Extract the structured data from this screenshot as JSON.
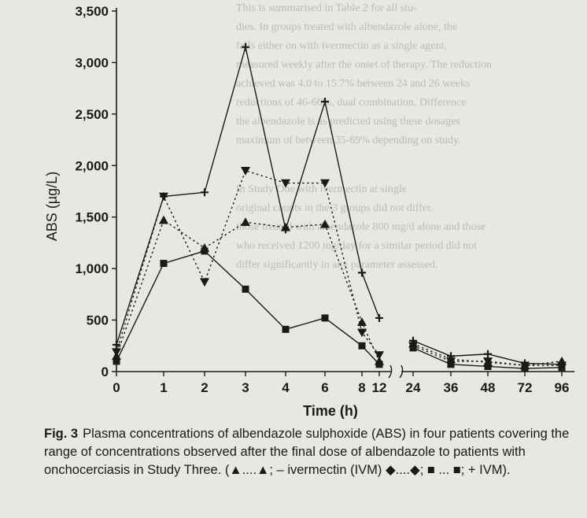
{
  "background_text": [
    "This is summarised in Table 2 for all stu-",
    "dies. In groups treated with albendazole alone, the",
    "falls either on with ivermectin as a single agent,",
    "measured weekly after the onset of therapy. The reduction",
    "achieved was 4.0 to 15.7% between 24 and 26 weeks",
    "reductions of 46-66%, dual combination. Difference",
    "the albendazole is as predicted using these dosages",
    "maximum of between 35-69% depending on study.",
    "In Study One with ivermectin at single",
    "original counts in the 3 groups did not differ.",
    "those treated with albendazole 800 mg/d alone and those",
    "who received 1200 mg/day for a similar period did not",
    "differ significantly in any parameter assessed."
  ],
  "caption": {
    "figure_label": "Fig. 3",
    "text": "Plasma concentrations of albendazole sulphoxide (ABS) in four patients covering the range of concentrations observed after the final dose of albendazole to patients with onchocerciasis in Study Three. (▲....▲; – ivermectin (IVM) ◆....◆; ■ ... ■; + IVM)."
  },
  "chart_data": {
    "type": "line",
    "xlabel": "Time (h)",
    "ylabel": "ABS (µg/L)",
    "ylim": [
      0,
      3500
    ],
    "y_ticks": [
      "0",
      "500",
      "1,000",
      "1,500",
      "2,000",
      "2,500",
      "3,000",
      "3,500"
    ],
    "y_tick_values": [
      0,
      500,
      1000,
      1500,
      2000,
      2500,
      3000,
      3500
    ],
    "x_ticks": [
      "0",
      "1",
      "2",
      "3",
      "4",
      "6",
      "8",
      "12",
      "24",
      "36",
      "48",
      "72",
      "96"
    ],
    "x_axis_break_between": [
      "12",
      "24"
    ],
    "grid": false,
    "legend": "none",
    "series": [
      {
        "marker": "cross",
        "line_style": "solid",
        "values": [
          260,
          1700,
          1740,
          3150,
          1380,
          2620,
          960,
          520,
          300,
          150,
          170,
          80,
          70
        ]
      },
      {
        "marker": "triangle",
        "line_style": "dotted",
        "values": [
          150,
          1470,
          1200,
          1450,
          1400,
          1430,
          480,
          100,
          270,
          120,
          90,
          60,
          100
        ]
      },
      {
        "marker": "inverted-triangle",
        "line_style": "dotted",
        "values": [
          190,
          1700,
          870,
          1950,
          1830,
          1830,
          380,
          160,
          250,
          100,
          100,
          60,
          60
        ]
      },
      {
        "marker": "square",
        "line_style": "solid",
        "values": [
          100,
          1050,
          1170,
          800,
          410,
          520,
          250,
          70,
          230,
          70,
          50,
          30,
          40
        ]
      }
    ]
  }
}
